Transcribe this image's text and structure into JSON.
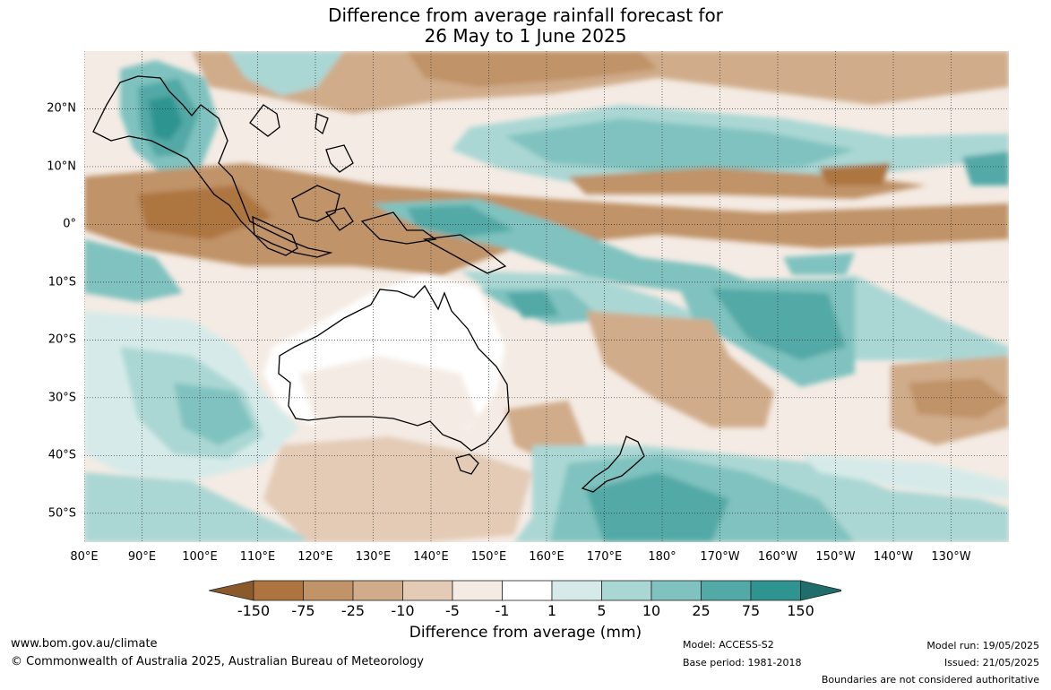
{
  "title_line1": "Difference from average rainfall forecast for",
  "title_line2": "26 May to 1 June 2025",
  "lat_labels": [
    "20°N",
    "10°N",
    "0°",
    "10°S",
    "20°S",
    "30°S",
    "40°S",
    "50°S"
  ],
  "lat_values": [
    20,
    10,
    0,
    -10,
    -20,
    -30,
    -40,
    -50
  ],
  "lon_labels": [
    "80°E",
    "90°E",
    "100°E",
    "110°E",
    "120°E",
    "130°E",
    "140°E",
    "150°E",
    "160°E",
    "170°E",
    "180°",
    "170°W",
    "160°W",
    "150°W",
    "140°W",
    "130°W"
  ],
  "lon_values": [
    80,
    90,
    100,
    110,
    120,
    130,
    140,
    150,
    160,
    170,
    180,
    190,
    200,
    210,
    220,
    230
  ],
  "map_extent": {
    "lon_min": 80,
    "lon_max": 240,
    "lat_min": -55,
    "lat_max": 30
  },
  "legend": {
    "title": "Difference from average (mm)",
    "ticks": [
      "-150",
      "-75",
      "-25",
      "-10",
      "-5",
      "-1",
      "1",
      "5",
      "10",
      "25",
      "75",
      "150"
    ],
    "colors": [
      "#8b5a2b",
      "#ad7440",
      "#c09368",
      "#d0ac8a",
      "#e3cbb5",
      "#f4ebe4",
      "#ffffff",
      "#d6ebe9",
      "#aad7d4",
      "#7fc2bf",
      "#52a9a6",
      "#2f9490",
      "#1f6e6b"
    ]
  },
  "footer": {
    "website": "www.bom.gov.au/climate",
    "copyright": "© Commonwealth of Australia 2025, Australian Bureau of Meteorology",
    "model": "Model: ACCESS-S2",
    "base_period": "Base period: 1981-2018",
    "model_run": "Model run: 19/05/2025",
    "issued": "Issued: 21/05/2025",
    "boundaries": "Boundaries are not considered authoritative"
  }
}
